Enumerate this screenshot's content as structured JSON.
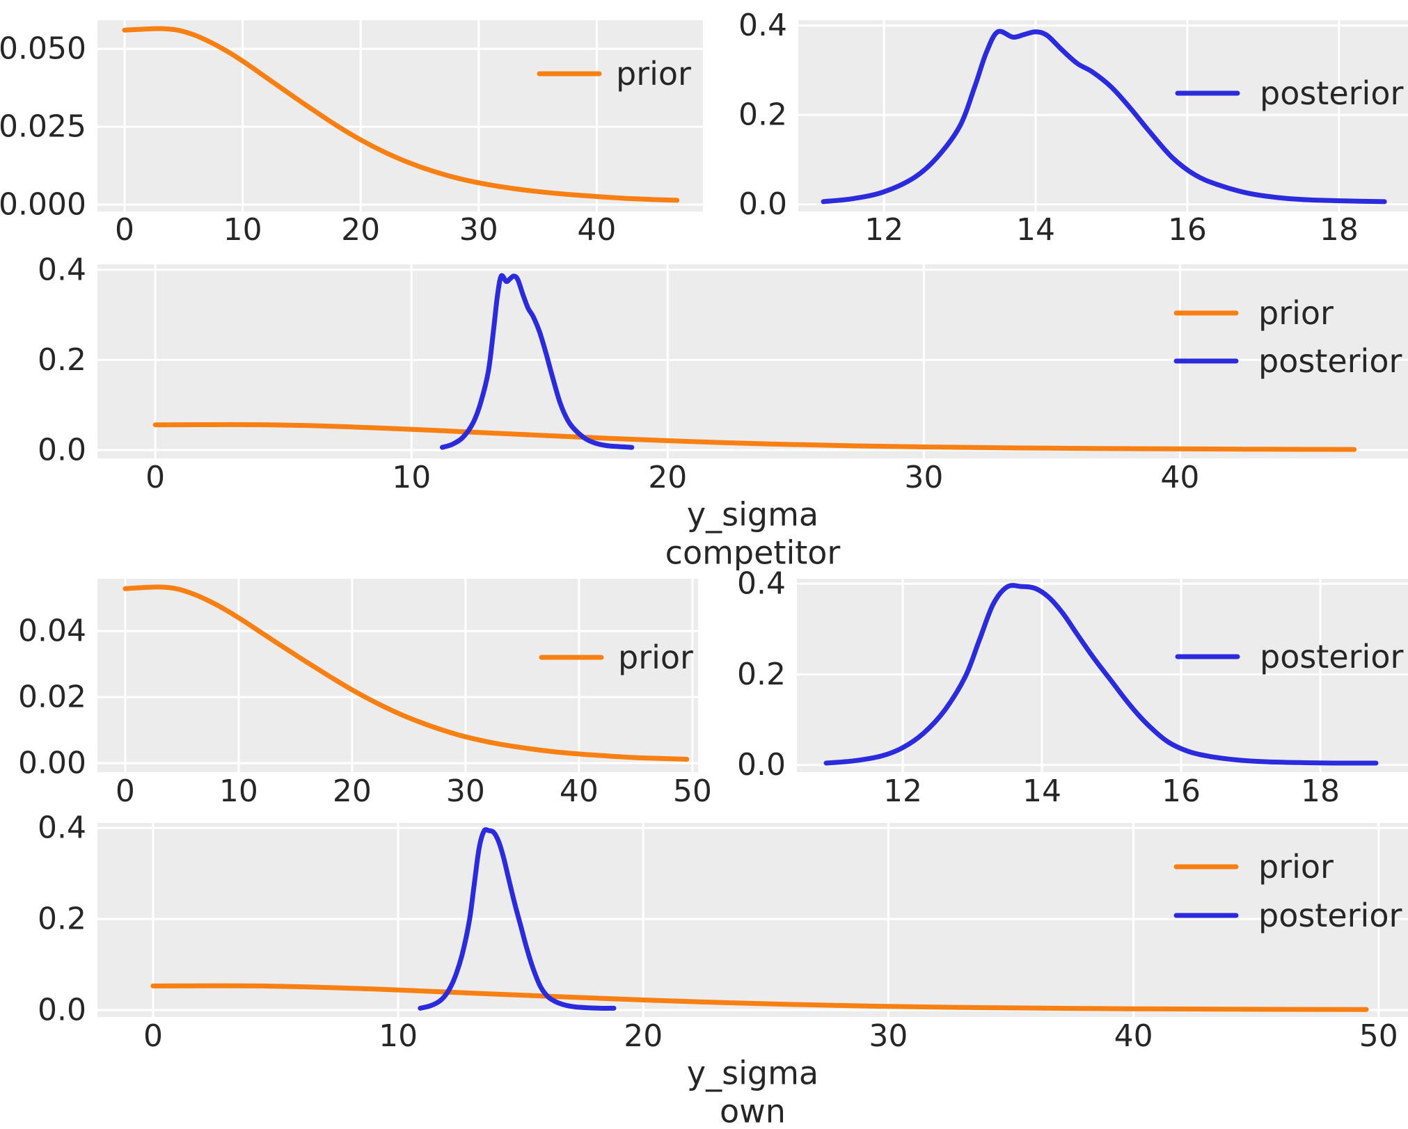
{
  "figure": {
    "background": "#ffffff",
    "panel_background": "#ececec",
    "grid_color": "#ffffff",
    "text_color": "#262626",
    "colors": {
      "prior": "#f87f11",
      "posterior": "#2b2bdd"
    }
  },
  "legend": {
    "prior_label": "prior",
    "posterior_label": "posterior"
  },
  "chart_data": [
    {
      "id": "competitor-prior",
      "type": "line",
      "xlim": [
        -2.3,
        49.0
      ],
      "ylim": [
        -0.0022,
        0.0592
      ],
      "xticks": {
        "values": [
          0,
          10,
          20,
          30,
          40
        ],
        "labels": [
          "0",
          "10",
          "20",
          "30",
          "40"
        ]
      },
      "yticks": {
        "values": [
          0.0,
          0.025,
          0.05
        ],
        "labels": [
          "0.000",
          "0.025",
          "0.050"
        ]
      },
      "grid": true,
      "legend_position": "upper-right",
      "xlabel_lines": [],
      "series": [
        {
          "name": "prior",
          "label": "prior",
          "color": "#f87f11",
          "curve": "competitor_prior"
        }
      ]
    },
    {
      "id": "competitor-posterior",
      "type": "line",
      "xlim": [
        10.87,
        18.91
      ],
      "ylim": [
        -0.016,
        0.412
      ],
      "xticks": {
        "values": [
          12,
          14,
          16,
          18
        ],
        "labels": [
          "12",
          "14",
          "16",
          "18"
        ]
      },
      "yticks": {
        "values": [
          0.0,
          0.2,
          0.4
        ],
        "labels": [
          "0.0",
          "0.2",
          "0.4"
        ]
      },
      "grid": true,
      "legend_position": "upper-right",
      "xlabel_lines": [],
      "series": [
        {
          "name": "posterior",
          "label": "posterior",
          "color": "#2b2bdd",
          "curve": "competitor_posterior"
        }
      ]
    },
    {
      "id": "competitor-prior-and-posterior",
      "type": "line",
      "xlim": [
        -2.26,
        48.9
      ],
      "ylim": [
        -0.0185,
        0.412
      ],
      "xticks": {
        "values": [
          0,
          10,
          20,
          30,
          40
        ],
        "labels": [
          "0",
          "10",
          "20",
          "30",
          "40"
        ]
      },
      "yticks": {
        "values": [
          0.0,
          0.2,
          0.4
        ],
        "labels": [
          "0.0",
          "0.2",
          "0.4"
        ]
      },
      "grid": true,
      "legend_position": "upper-right",
      "xlabel_lines": [
        "y_sigma",
        "competitor"
      ],
      "series": [
        {
          "name": "prior",
          "label": "prior",
          "color": "#f87f11",
          "curve": "competitor_prior"
        },
        {
          "name": "posterior",
          "label": "posterior",
          "color": "#2b2bdd",
          "curve": "competitor_posterior"
        }
      ]
    },
    {
      "id": "own-prior",
      "type": "line",
      "xlim": [
        -2.45,
        50.5
      ],
      "ylim": [
        -0.0027,
        0.0558
      ],
      "xticks": {
        "values": [
          0,
          10,
          20,
          30,
          40,
          50
        ],
        "labels": [
          "0",
          "10",
          "20",
          "30",
          "40",
          "50"
        ]
      },
      "yticks": {
        "values": [
          0.0,
          0.02,
          0.04
        ],
        "labels": [
          "0.00",
          "0.02",
          "0.04"
        ]
      },
      "grid": true,
      "legend_position": "upper-right",
      "xlabel_lines": [],
      "series": [
        {
          "name": "prior",
          "label": "prior",
          "color": "#f87f11",
          "curve": "own_prior"
        }
      ]
    },
    {
      "id": "own-posterior",
      "type": "line",
      "xlim": [
        10.48,
        19.26
      ],
      "ylim": [
        -0.016,
        0.411
      ],
      "xticks": {
        "values": [
          12,
          14,
          16,
          18
        ],
        "labels": [
          "12",
          "14",
          "16",
          "18"
        ]
      },
      "yticks": {
        "values": [
          0.0,
          0.2,
          0.4
        ],
        "labels": [
          "0.0",
          "0.2",
          "0.4"
        ]
      },
      "grid": true,
      "legend_position": "upper-right",
      "xlabel_lines": [],
      "series": [
        {
          "name": "posterior",
          "label": "posterior",
          "color": "#2b2bdd",
          "curve": "own_posterior"
        }
      ]
    },
    {
      "id": "own-prior-and-posterior",
      "type": "line",
      "xlim": [
        -2.27,
        51.2
      ],
      "ylim": [
        -0.0153,
        0.411
      ],
      "xticks": {
        "values": [
          0,
          10,
          20,
          30,
          40,
          50
        ],
        "labels": [
          "0",
          "10",
          "20",
          "30",
          "40",
          "50"
        ]
      },
      "yticks": {
        "values": [
          0.0,
          0.2,
          0.4
        ],
        "labels": [
          "0.0",
          "0.2",
          "0.4"
        ]
      },
      "grid": true,
      "legend_position": "upper-right",
      "xlabel_lines": [
        "y_sigma",
        "own"
      ],
      "series": [
        {
          "name": "prior",
          "label": "prior",
          "color": "#f87f11",
          "curve": "own_prior"
        },
        {
          "name": "posterior",
          "label": "posterior",
          "color": "#2b2bdd",
          "curve": "own_posterior"
        }
      ]
    }
  ],
  "curves": {
    "competitor_prior": {
      "x": [
        0,
        1.5,
        3,
        4.5,
        6,
        7.5,
        9,
        10.5,
        12,
        14,
        16,
        18,
        20,
        22,
        24,
        26,
        28,
        30,
        32.5,
        35,
        37.5,
        40,
        42.5,
        45,
        46.8
      ],
      "y": [
        0.056,
        0.0563,
        0.0565,
        0.056,
        0.0543,
        0.0517,
        0.0485,
        0.0448,
        0.0408,
        0.0355,
        0.0303,
        0.0253,
        0.0208,
        0.0169,
        0.0136,
        0.0109,
        0.0087,
        0.007,
        0.0054,
        0.0042,
        0.0033,
        0.0026,
        0.002,
        0.0016,
        0.0014
      ]
    },
    "competitor_posterior": {
      "x": [
        11.2,
        11.6,
        12.0,
        12.4,
        12.7,
        13.0,
        13.2,
        13.35,
        13.5,
        13.7,
        13.85,
        14.0,
        14.15,
        14.35,
        14.55,
        14.75,
        15.0,
        15.25,
        15.5,
        15.8,
        16.1,
        16.4,
        16.8,
        17.2,
        17.6,
        18.0,
        18.6
      ],
      "y": [
        0.006,
        0.013,
        0.028,
        0.06,
        0.105,
        0.175,
        0.265,
        0.34,
        0.386,
        0.374,
        0.38,
        0.386,
        0.378,
        0.345,
        0.315,
        0.296,
        0.262,
        0.215,
        0.163,
        0.105,
        0.066,
        0.044,
        0.025,
        0.015,
        0.01,
        0.008,
        0.006
      ]
    },
    "own_prior": {
      "x": [
        0,
        1.5,
        3,
        4.5,
        6,
        7.5,
        9,
        10.5,
        12,
        14,
        16,
        18,
        20,
        22,
        24,
        26,
        28,
        30,
        32.5,
        35,
        37.5,
        40,
        42.5,
        45,
        47.5,
        49.5
      ],
      "y": [
        0.0528,
        0.0531,
        0.0533,
        0.0528,
        0.0512,
        0.0489,
        0.0461,
        0.0429,
        0.0395,
        0.035,
        0.0306,
        0.0263,
        0.0222,
        0.0185,
        0.0152,
        0.0124,
        0.01,
        0.008,
        0.0061,
        0.0047,
        0.0036,
        0.0028,
        0.0022,
        0.0017,
        0.0014,
        0.0012
      ]
    },
    "own_posterior": {
      "x": [
        10.9,
        11.3,
        11.7,
        12.0,
        12.3,
        12.6,
        12.9,
        13.1,
        13.3,
        13.5,
        13.7,
        13.9,
        14.1,
        14.3,
        14.5,
        14.75,
        15.0,
        15.25,
        15.5,
        15.8,
        16.1,
        16.4,
        16.8,
        17.2,
        17.7,
        18.2,
        18.8
      ],
      "y": [
        0.004,
        0.009,
        0.02,
        0.038,
        0.07,
        0.12,
        0.195,
        0.275,
        0.355,
        0.393,
        0.394,
        0.39,
        0.37,
        0.335,
        0.29,
        0.235,
        0.185,
        0.135,
        0.092,
        0.052,
        0.03,
        0.019,
        0.011,
        0.007,
        0.005,
        0.004,
        0.004
      ]
    }
  }
}
